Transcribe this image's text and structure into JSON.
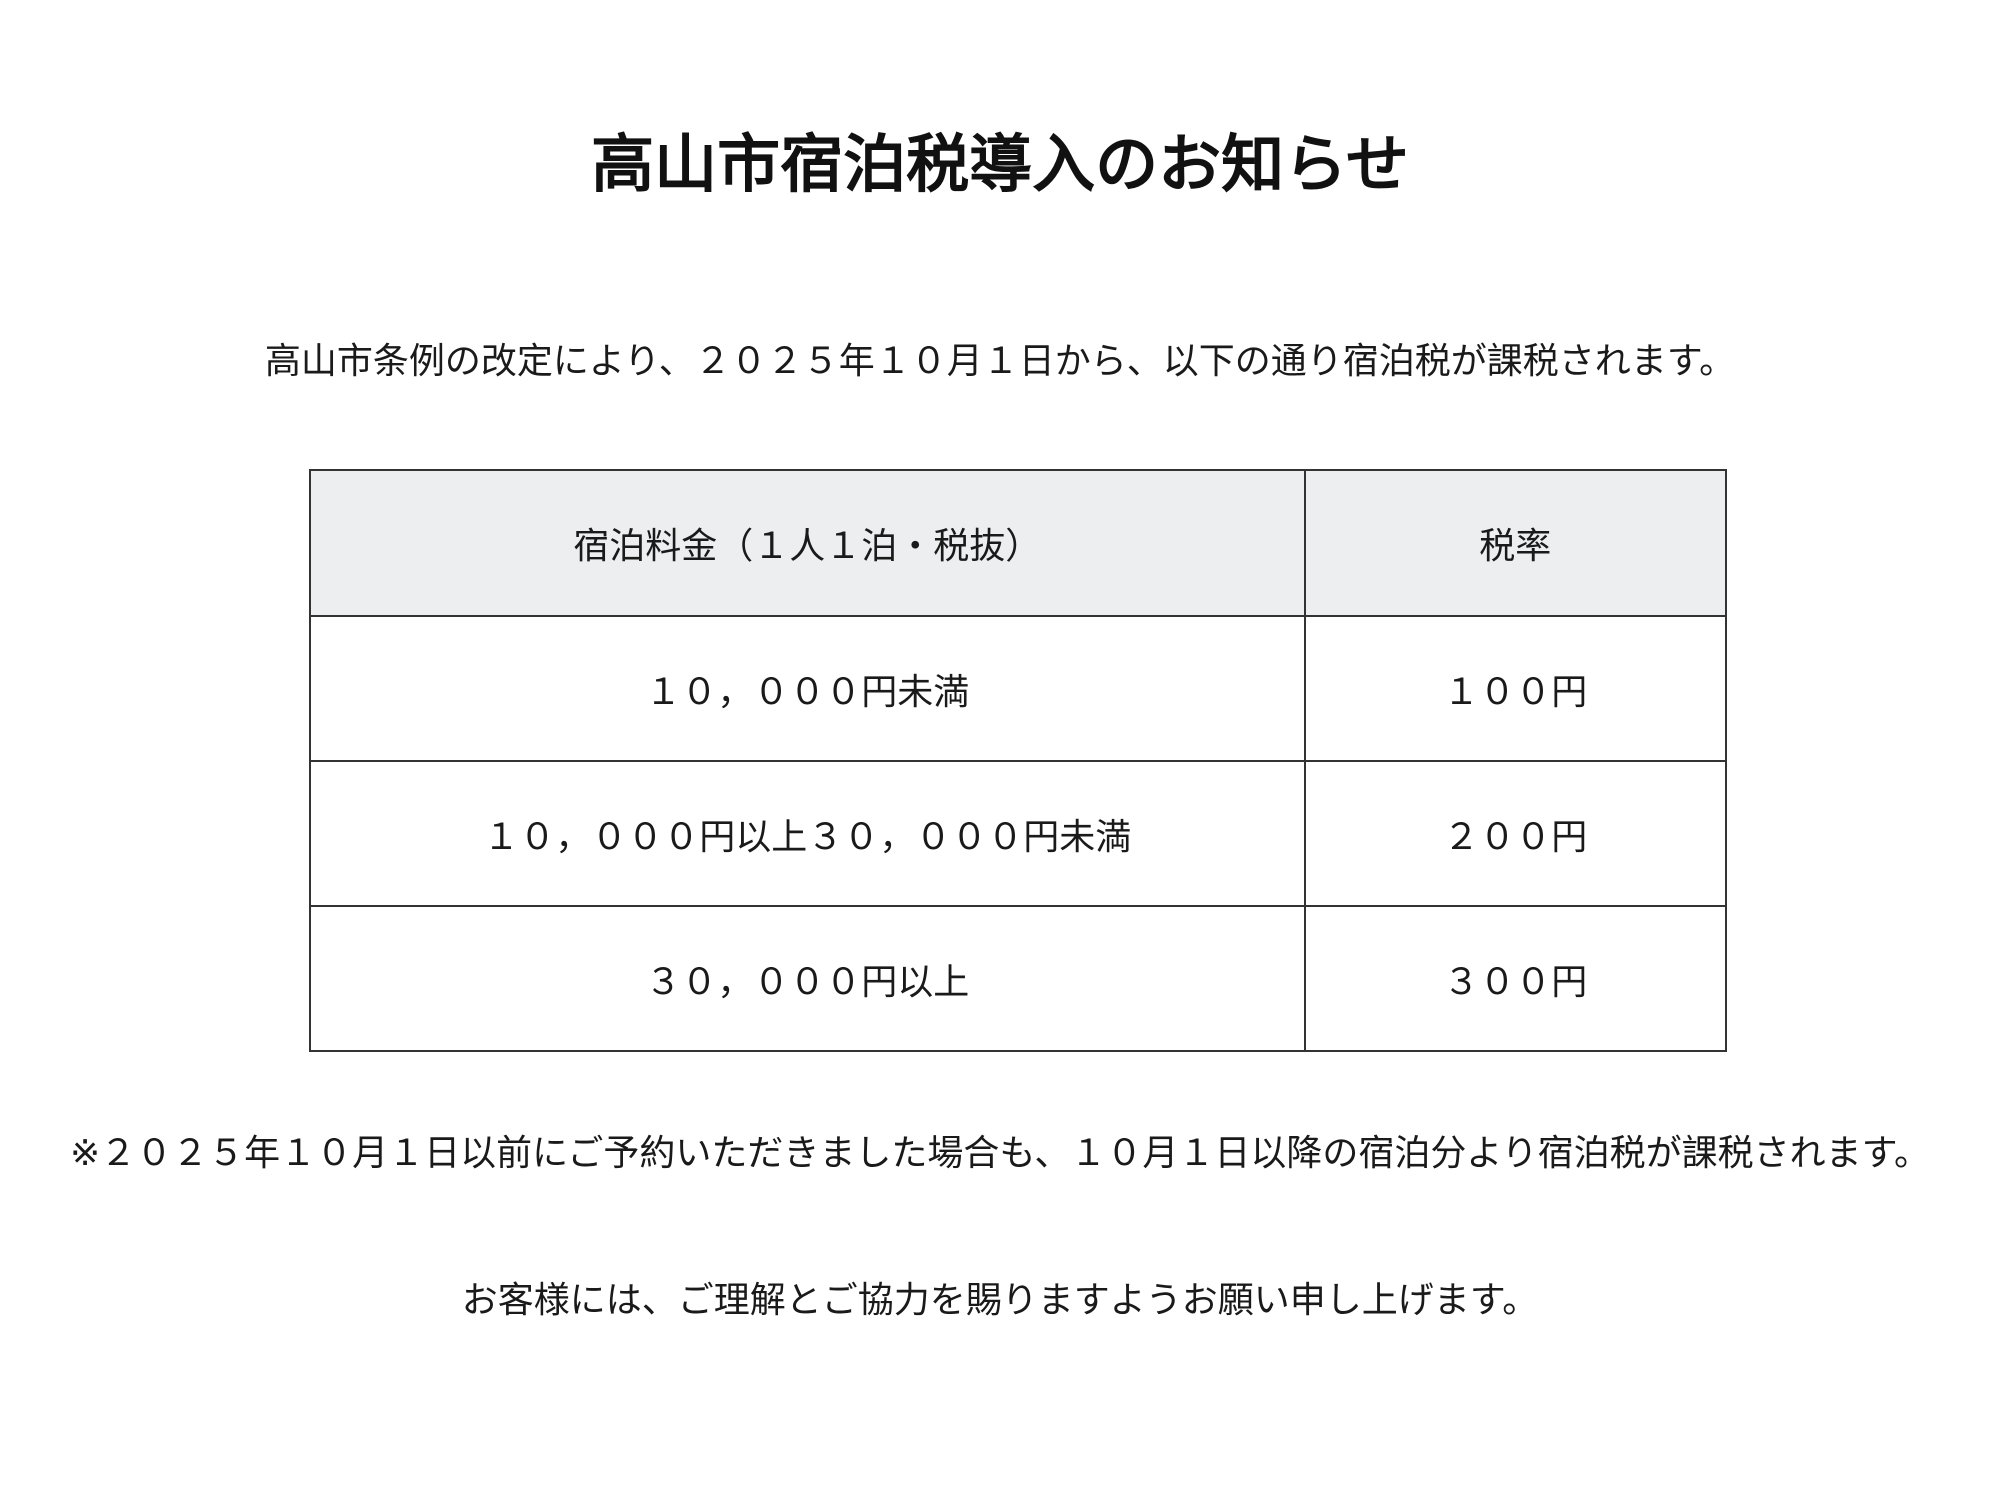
{
  "title": "高山市宿泊税導入のお知らせ",
  "intro": "高山市条例の改定により、２０２５年１０月１日から、以下の通り宿泊税が課税されます。",
  "table": {
    "headers": [
      "宿泊料金（１人１泊・税抜）",
      "税率"
    ],
    "rows": [
      [
        "１０，０００円未満",
        "１００円"
      ],
      [
        "１０，０００円以上３０，０００円未満",
        "２００円"
      ],
      [
        "３０，０００円以上",
        "３００円"
      ]
    ]
  },
  "note": "※２０２５年１０月１日以前にご予約いただきました場合も、１０月１日以降の宿泊分より宿泊税が課税されます。",
  "closing": "お客様には、ご理解とご協力を賜りますようお願い申し上げます。",
  "colors": {
    "header_bg": "#eceeef",
    "border": "#333333"
  }
}
